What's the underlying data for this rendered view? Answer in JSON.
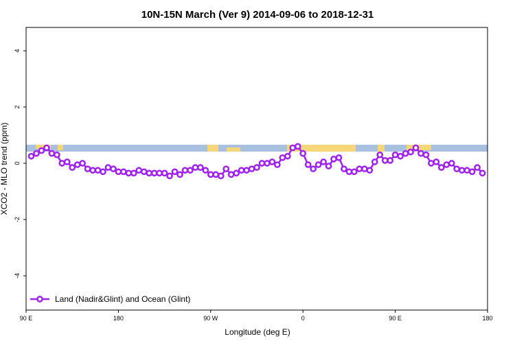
{
  "chart_data": {
    "type": "line",
    "title": "10N-15N March (Ver 9)   2014-09-06 to 2018-12-31",
    "x_label": "Longitude (deg E)",
    "y_label": "XCO2 - MLO trend (ppm)",
    "x": [
      95,
      100,
      105,
      110,
      115,
      120,
      125,
      130,
      135,
      140,
      145,
      150,
      155,
      160,
      165,
      170,
      175,
      180,
      185,
      190,
      195,
      200,
      205,
      210,
      215,
      220,
      225,
      230,
      235,
      240,
      245,
      250,
      255,
      260,
      265,
      270,
      275,
      280,
      285,
      290,
      295,
      300,
      305,
      310,
      315,
      320,
      325,
      330,
      335,
      340,
      345,
      350,
      355,
      360,
      365,
      370,
      375,
      380,
      385,
      390,
      395,
      400,
      405,
      410,
      415,
      420,
      425,
      430,
      435,
      440,
      445,
      450,
      455,
      460,
      465,
      470,
      475,
      480,
      485,
      490,
      495,
      500,
      505,
      510,
      515,
      520,
      525,
      530,
      535
    ],
    "series": [
      {
        "name": "Land (Nadir&Glint) and Ocean (Glint)",
        "color": "#a020f0",
        "values": [
          0.25,
          0.35,
          0.45,
          0.55,
          0.35,
          0.3,
          0.0,
          0.05,
          -0.15,
          -0.05,
          0.0,
          -0.2,
          -0.25,
          -0.25,
          -0.3,
          -0.15,
          -0.2,
          -0.3,
          -0.3,
          -0.35,
          -0.35,
          -0.25,
          -0.3,
          -0.35,
          -0.35,
          -0.35,
          -0.35,
          -0.45,
          -0.3,
          -0.4,
          -0.25,
          -0.25,
          -0.15,
          -0.15,
          -0.25,
          -0.4,
          -0.4,
          -0.45,
          -0.2,
          -0.4,
          -0.35,
          -0.25,
          -0.25,
          -0.2,
          -0.15,
          0.0,
          0.0,
          0.05,
          -0.05,
          0.2,
          0.25,
          0.55,
          0.6,
          0.35,
          -0.05,
          -0.2,
          -0.05,
          0.05,
          -0.1,
          0.15,
          0.2,
          -0.2,
          -0.3,
          -0.3,
          -0.2,
          -0.2,
          -0.25,
          0.05,
          0.3,
          0.1,
          0.1,
          0.3,
          0.25,
          0.35,
          0.4,
          0.55,
          0.35,
          0.3,
          0.0,
          0.05,
          -0.15,
          -0.05,
          0.0,
          -0.2,
          -0.25,
          -0.25,
          -0.3,
          -0.15,
          -0.35
        ]
      }
    ],
    "xlim": [
      90,
      540
    ],
    "xticks": [
      {
        "value": 90,
        "label": "90 E"
      },
      180,
      {
        "value": 270,
        "label": "90 W"
      },
      {
        "value": 360,
        "label": "0"
      },
      {
        "value": 450,
        "label": "90 E"
      },
      {
        "value": 540,
        "label": "180"
      }
    ],
    "ylim": [
      -5.22,
      4.83
    ],
    "yticks": [
      -4,
      -2,
      0,
      2,
      4
    ],
    "grid": false,
    "legend": "bottom-left"
  }
}
